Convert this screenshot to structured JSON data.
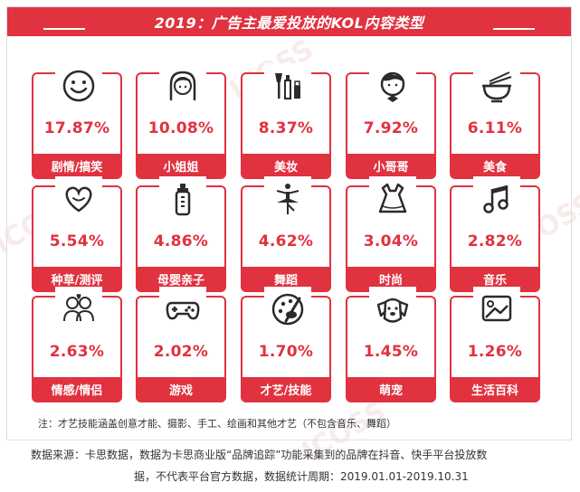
{
  "title": "2019：广告主最爱投放的KOL内容类型",
  "chart_data": {
    "type": "table",
    "categories": [
      "剧情/搞笑",
      "小姐姐",
      "美妆",
      "小哥哥",
      "美食",
      "种草/测评",
      "母婴亲子",
      "舞蹈",
      "时尚",
      "音乐",
      "情感/情侣",
      "游戏",
      "才艺/技能",
      "萌宠",
      "生活百科"
    ],
    "values": [
      "17.87%",
      "10.08%",
      "8.37%",
      "7.92%",
      "6.11%",
      "5.54%",
      "4.86%",
      "4.62%",
      "3.04%",
      "2.82%",
      "2.63%",
      "2.02%",
      "1.70%",
      "1.45%",
      "1.26%"
    ],
    "icons": [
      "smiley-icon",
      "girl-icon",
      "makeup-icon",
      "boy-icon",
      "food-bowl-icon",
      "heart-icon",
      "baby-bottle-icon",
      "dancer-icon",
      "dress-icon",
      "music-note-icon",
      "couple-icon",
      "gamepad-icon",
      "palette-icon",
      "dog-icon",
      "picture-icon"
    ]
  },
  "note": "注：才艺技能涵盖创意才能、摄影、手工、绘画和其他才艺（不包含音乐、舞蹈）",
  "source_line1": "数据来源：卡思数据，数据为卡思商业版“品牌追踪”功能采集到的品牌在抖音、快手平台投放数",
  "source_line2": "据，不代表平台官方数据，数据统计周期：2019.01.01-2019.10.31",
  "colors": {
    "accent": "#e0323f",
    "text": "#333333"
  }
}
